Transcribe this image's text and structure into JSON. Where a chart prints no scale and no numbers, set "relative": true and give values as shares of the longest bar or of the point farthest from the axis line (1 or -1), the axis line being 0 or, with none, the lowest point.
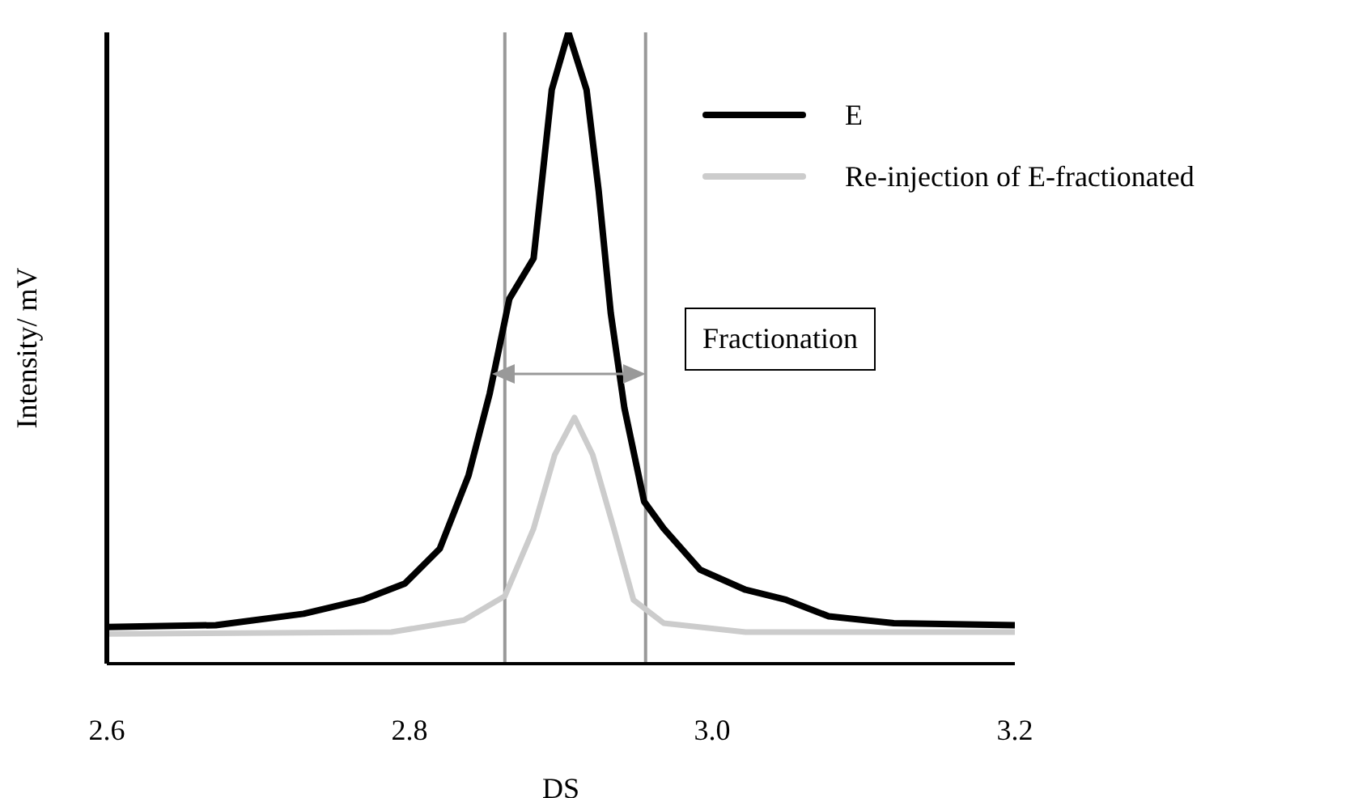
{
  "chart_data": {
    "type": "line",
    "xlabel": "DS",
    "ylabel": "Intensity/ mV",
    "relative": true,
    "xlim": [
      2.6,
      3.2
    ],
    "xticks": [
      {
        "value": 2.6,
        "label": "2.6"
      },
      {
        "value": 2.8,
        "label": "2.8"
      },
      {
        "value": 3,
        "label": "3.0"
      },
      {
        "value": 3.2,
        "label": "3.2"
      }
    ],
    "legend": "top right",
    "marker": "none",
    "line_style": "solid",
    "series": [
      {
        "name": "E",
        "color": "#000000",
        "x": [
          2.6,
          2.672,
          2.73,
          2.769,
          2.797,
          2.82,
          2.839,
          2.853,
          2.866,
          2.882,
          2.894,
          2.905,
          2.917,
          2.925,
          2.933,
          2.942,
          2.955,
          2.968,
          2.992,
          3.022,
          3.049,
          3.077,
          3.12,
          3.2
        ],
        "values": [
          0.058,
          0.061,
          0.079,
          0.101,
          0.127,
          0.182,
          0.298,
          0.428,
          0.578,
          0.642,
          0.909,
          1.0,
          0.909,
          0.749,
          0.555,
          0.405,
          0.257,
          0.214,
          0.149,
          0.117,
          0.101,
          0.075,
          0.064,
          0.061
        ]
      },
      {
        "name": "Re-injection of E-fractionated",
        "color": "#cccccc",
        "x": [
          2.6,
          2.788,
          2.836,
          2.863,
          2.882,
          2.896,
          2.909,
          2.921,
          2.935,
          2.948,
          2.968,
          3.022,
          3.2
        ],
        "values": [
          0.047,
          0.05,
          0.069,
          0.107,
          0.214,
          0.331,
          0.39,
          0.331,
          0.214,
          0.101,
          0.064,
          0.05,
          0.05
        ]
      }
    ],
    "ref_lines": [
      {
        "axis": "x",
        "value": 2.863,
        "color": "#999999"
      },
      {
        "axis": "x",
        "value": 2.956,
        "color": "#999999"
      }
    ],
    "annotations": [
      "Fractionation"
    ]
  }
}
